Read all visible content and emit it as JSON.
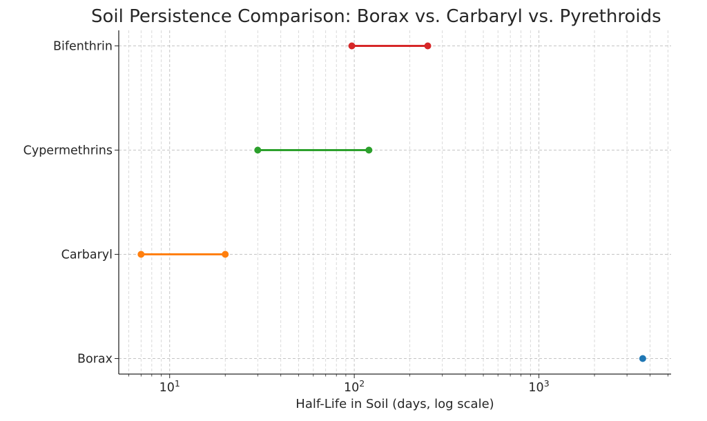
{
  "chart_data": {
    "type": "range",
    "title": "Soil Persistence Comparison: Borax vs. Carbaryl vs. Pyrethroids",
    "xlabel": "Half-Life in Soil (days, log scale)",
    "ylabel": "",
    "x_scale": "log",
    "xlim": [
      5.3,
      5200
    ],
    "x_ticks": [
      {
        "value": 10,
        "base": "10",
        "exp": "1"
      },
      {
        "value": 100,
        "base": "10",
        "exp": "2"
      },
      {
        "value": 1000,
        "base": "10",
        "exp": "3"
      }
    ],
    "categories": [
      "Borax",
      "Carbaryl",
      "Cypermethrins",
      "Bifenthrin"
    ],
    "series": [
      {
        "category": "Borax",
        "min": 3650,
        "max": 3650,
        "color": "#1f77b4"
      },
      {
        "category": "Carbaryl",
        "min": 7,
        "max": 20,
        "color": "#ff7f0e"
      },
      {
        "category": "Cypermethrins",
        "min": 30,
        "max": 120,
        "color": "#2ca02c"
      },
      {
        "category": "Bifenthrin",
        "min": 97,
        "max": 250,
        "color": "#d62728"
      }
    ],
    "grid": true,
    "legend": "none"
  }
}
